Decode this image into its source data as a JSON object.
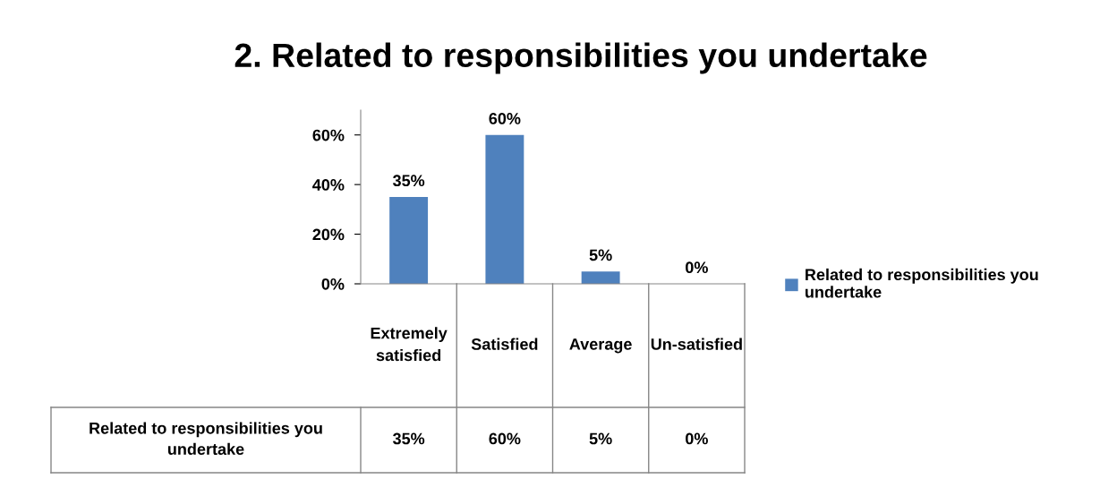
{
  "chart_data": {
    "type": "bar",
    "title": "2. Related to responsibilities you undertake",
    "categories": [
      "Extremely satisfied",
      "Satisfied",
      "Average",
      "Un-satisfied"
    ],
    "series": [
      {
        "name": "Related to responsibilities you undertake",
        "color": "#4f81bd",
        "values": [
          35,
          60,
          5,
          0
        ],
        "value_labels": [
          "35%",
          "60%",
          "5%",
          "0%"
        ]
      }
    ],
    "ylim": [
      0,
      70
    ],
    "yticks": [
      {
        "value": 0,
        "label": "0%"
      },
      {
        "value": 20,
        "label": "20%"
      },
      {
        "value": 40,
        "label": "40%"
      },
      {
        "value": 60,
        "label": "60%"
      }
    ],
    "grid": false,
    "legend": "right"
  }
}
